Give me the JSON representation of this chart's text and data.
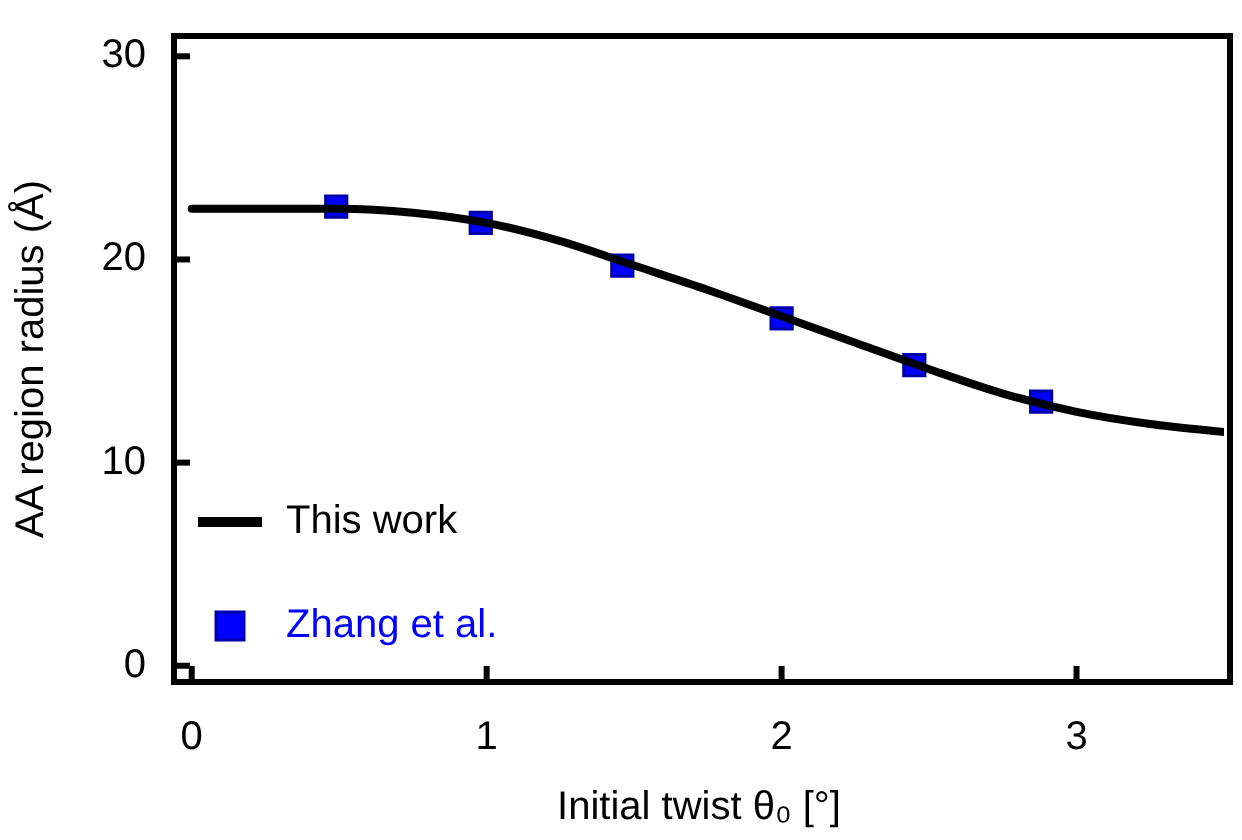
{
  "chart_data": {
    "type": "line",
    "xlabel": "Initial twist θ₀ [°]",
    "ylabel": "AA region radius (Å)",
    "xlim": [
      -0.06,
      3.5
    ],
    "xticks": [
      0,
      1,
      2,
      3
    ],
    "ylim": [
      -0.8,
      31
    ],
    "yticks": [
      0,
      10,
      20,
      30
    ],
    "grid": false,
    "legend": "bottom left",
    "series": [
      {
        "name": "This work",
        "color": "#000000",
        "marker": "none",
        "x": [
          0,
          0.25,
          0.5,
          0.75,
          1,
          1.25,
          1.5,
          1.75,
          2,
          2.25,
          2.5,
          2.75,
          3,
          3.25,
          3.5
        ],
        "values": [
          22.5,
          22.5,
          22.5,
          22.3,
          21.8,
          20.9,
          19.7,
          18.5,
          17.2,
          15.9,
          14.6,
          13.4,
          12.5,
          11.9,
          11.5
        ]
      },
      {
        "name": "Zhang et al.",
        "type": "scatter",
        "color": "#0000ff",
        "marker": "square",
        "x": [
          0.49,
          0.98,
          1.46,
          2.0,
          2.45,
          2.88
        ],
        "values": [
          22.6,
          21.8,
          19.7,
          17.1,
          14.8,
          13.0
        ]
      }
    ]
  }
}
